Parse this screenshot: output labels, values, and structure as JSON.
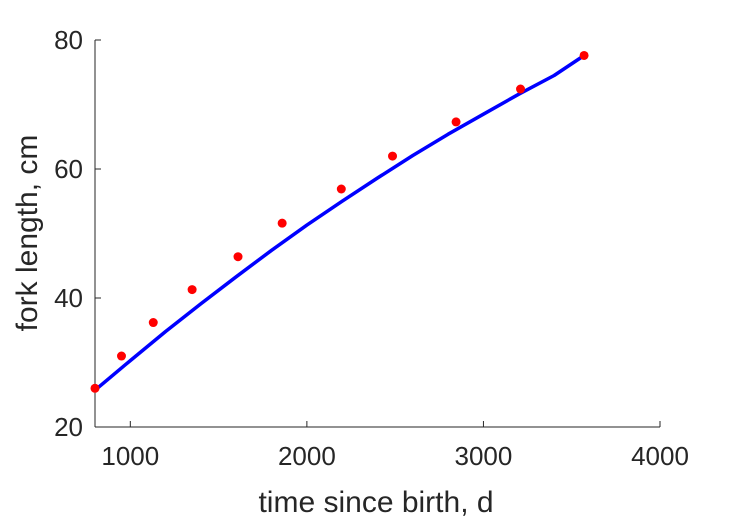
{
  "chart_data": {
    "type": "scatter",
    "title": "",
    "xlabel": "time since birth, d",
    "ylabel": "fork length, cm",
    "xlim": [
      800,
      4000
    ],
    "ylim": [
      20,
      80
    ],
    "xticks": [
      1000,
      2000,
      3000,
      4000
    ],
    "yticks": [
      20,
      40,
      60,
      80
    ],
    "grid": false,
    "series": [
      {
        "type": "scatter",
        "color": "#ff0000",
        "x": [
          800,
          950,
          1130,
          1350,
          1610,
          1860,
          2195,
          2485,
          2845,
          3210,
          3570
        ],
        "y": [
          26.0,
          31.0,
          36.2,
          41.3,
          46.4,
          51.6,
          56.9,
          62.0,
          67.3,
          72.4,
          77.6
        ]
      },
      {
        "type": "line",
        "color": "#0000ff",
        "x": [
          800,
          1000,
          1200,
          1400,
          1600,
          1800,
          2000,
          2200,
          2400,
          2600,
          2800,
          3000,
          3200,
          3400,
          3570
        ],
        "y": [
          25.7,
          30.3,
          34.8,
          39.1,
          43.3,
          47.4,
          51.3,
          55.0,
          58.6,
          62.1,
          65.4,
          68.5,
          71.6,
          74.5,
          77.6
        ]
      }
    ]
  }
}
